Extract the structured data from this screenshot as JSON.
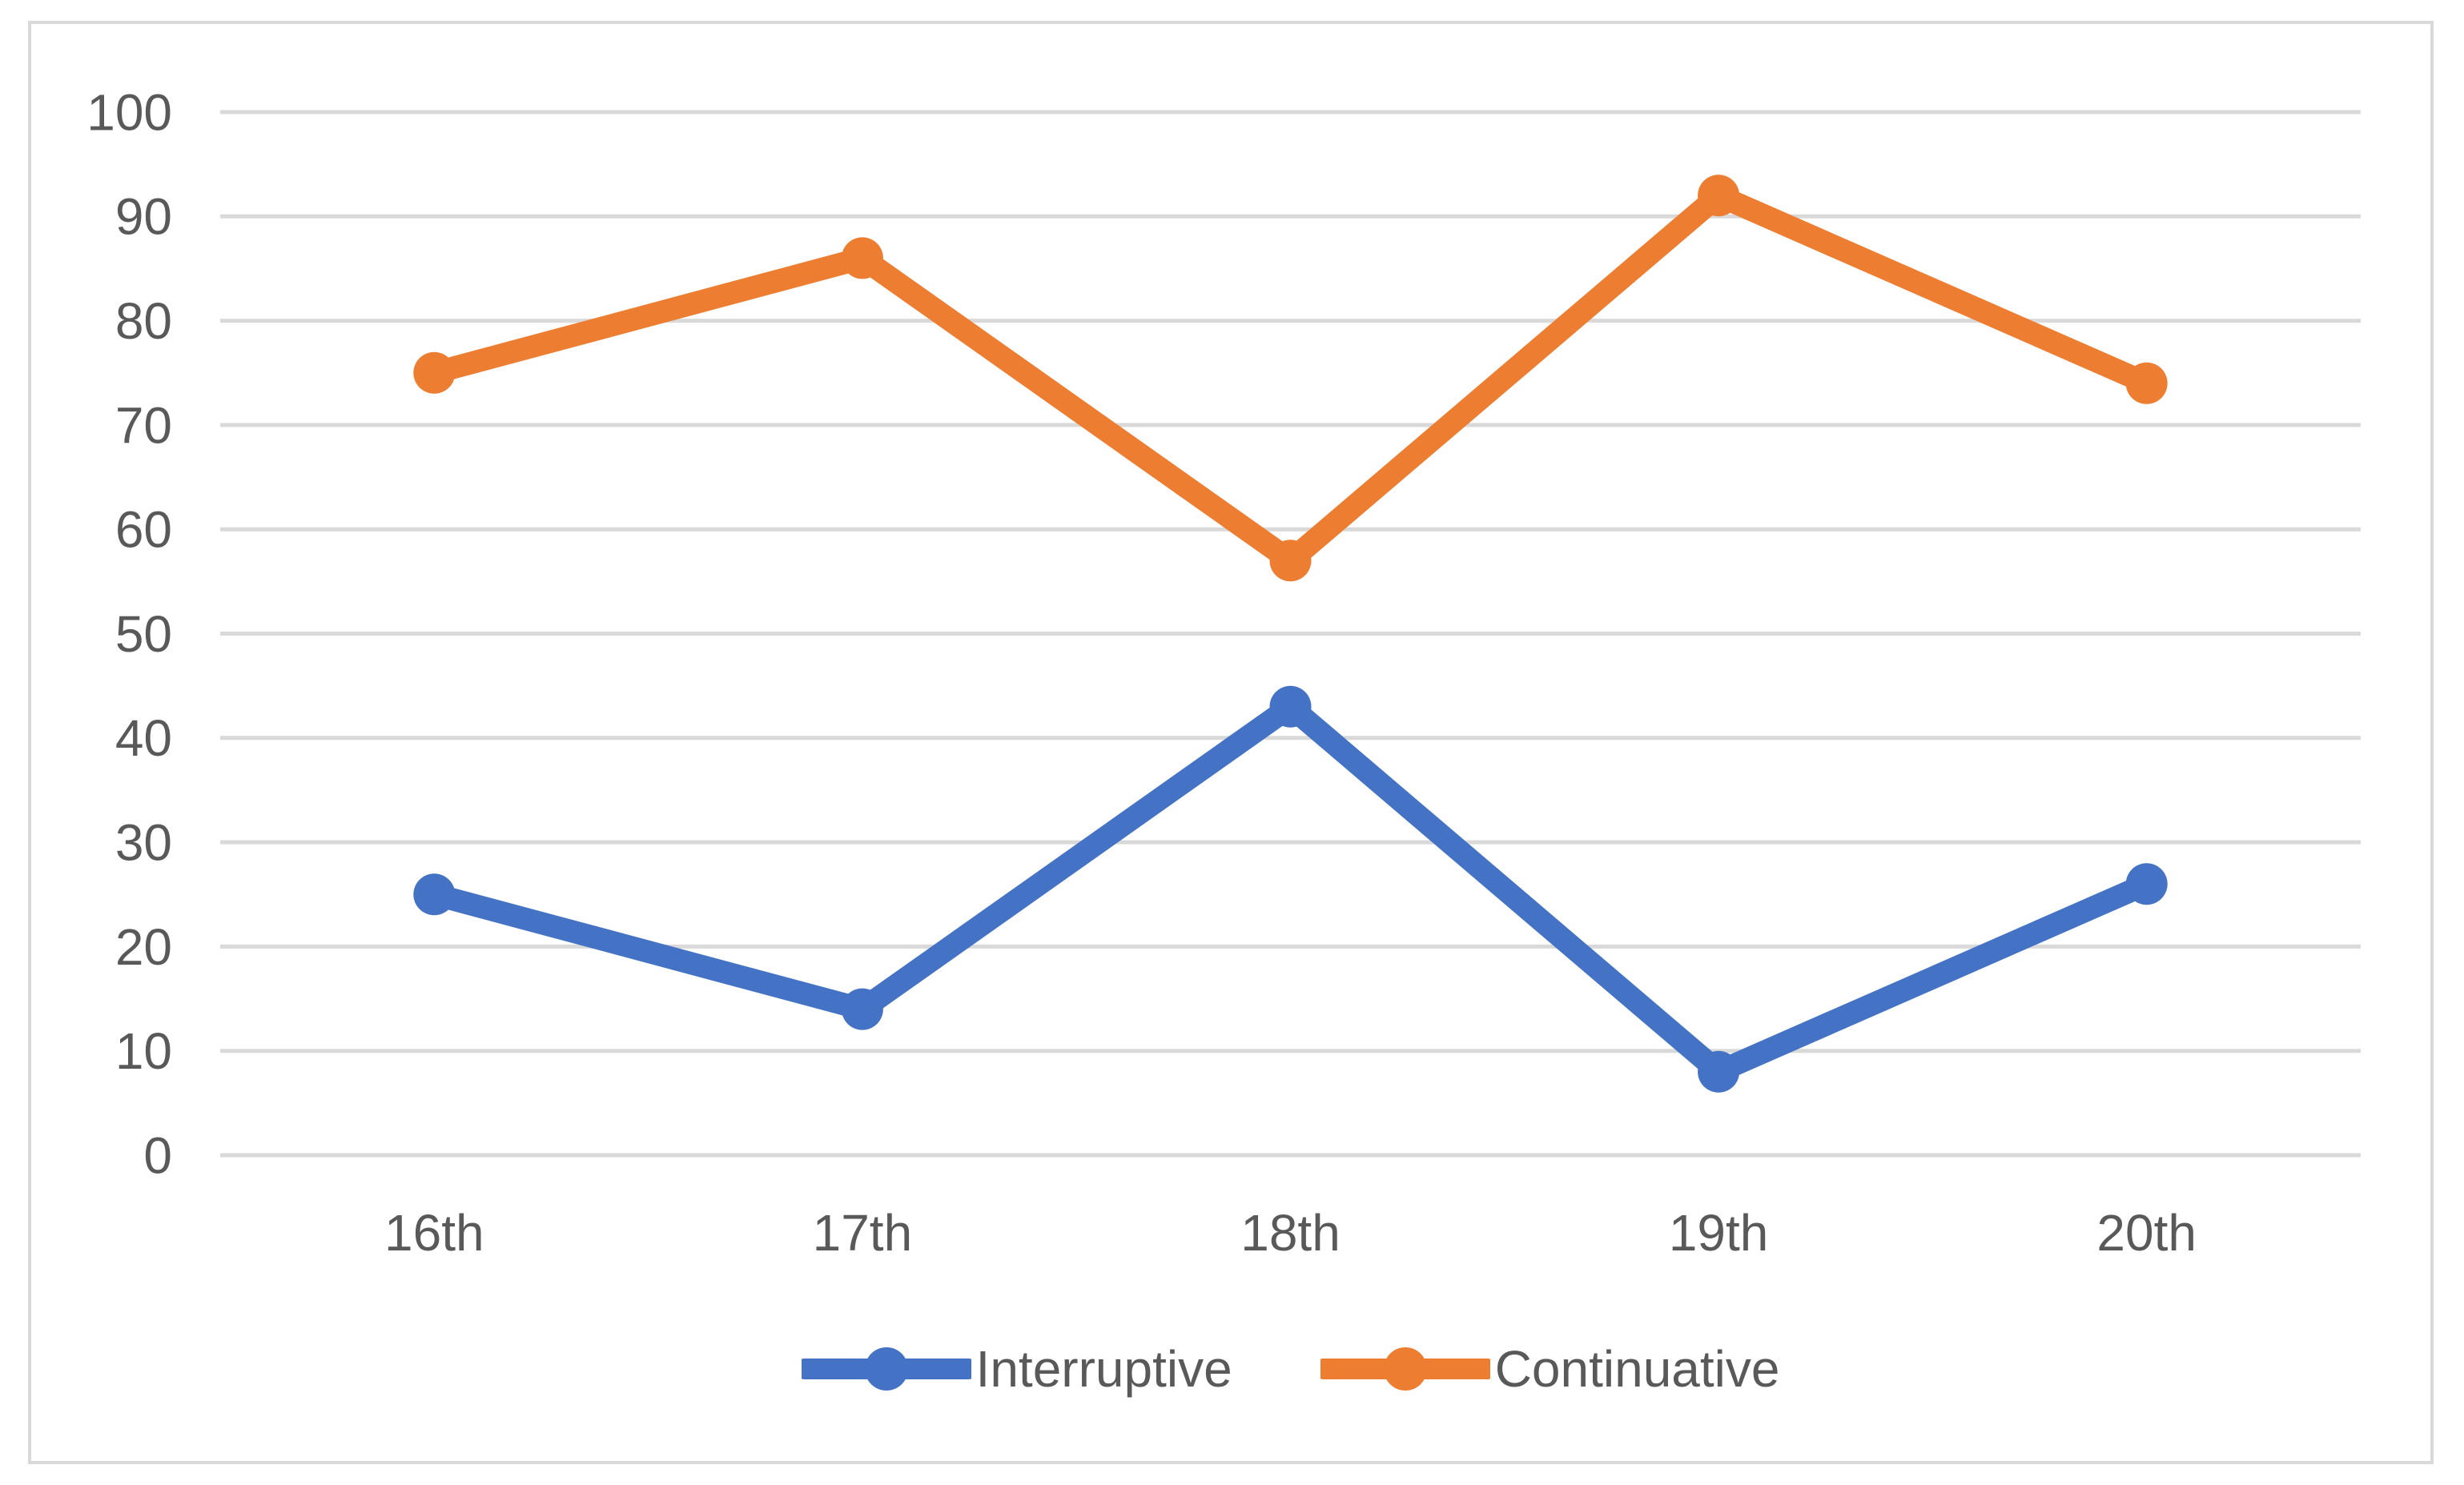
{
  "chart_data": {
    "type": "line",
    "categories": [
      "16th",
      "17th",
      "18th",
      "19th",
      "20th"
    ],
    "series": [
      {
        "name": "Interruptive",
        "color": "#4472C4",
        "values": [
          25,
          14,
          43,
          8,
          26
        ]
      },
      {
        "name": "Continuative",
        "color": "#ED7D31",
        "values": [
          75,
          86,
          57,
          92,
          74
        ]
      }
    ],
    "title": "",
    "xlabel": "",
    "ylabel": "",
    "ylim": [
      0,
      100
    ],
    "yticks": [
      0,
      10,
      20,
      30,
      40,
      50,
      60,
      70,
      80,
      90,
      100
    ],
    "grid": "horizontal",
    "legend_position": "bottom"
  },
  "colors": {
    "gridline": "#D9D9D9",
    "axis_text": "#595959",
    "border": "#D9D9D9",
    "background": "#FFFFFF"
  }
}
